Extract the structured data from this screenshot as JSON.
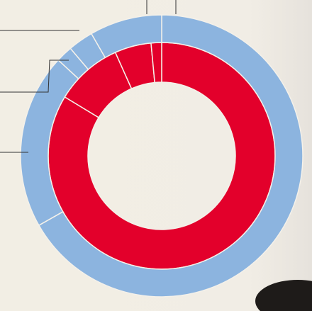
{
  "chart_data": {
    "type": "donut",
    "series": [
      {
        "color": "#e3002b",
        "values": [
          83.7,
          9.6,
          5.2,
          1.5
        ]
      },
      {
        "color": "#8cb4df",
        "values": [
          66.8,
          20.1,
          1.9,
          2.9,
          8.3
        ]
      }
    ]
  }
}
